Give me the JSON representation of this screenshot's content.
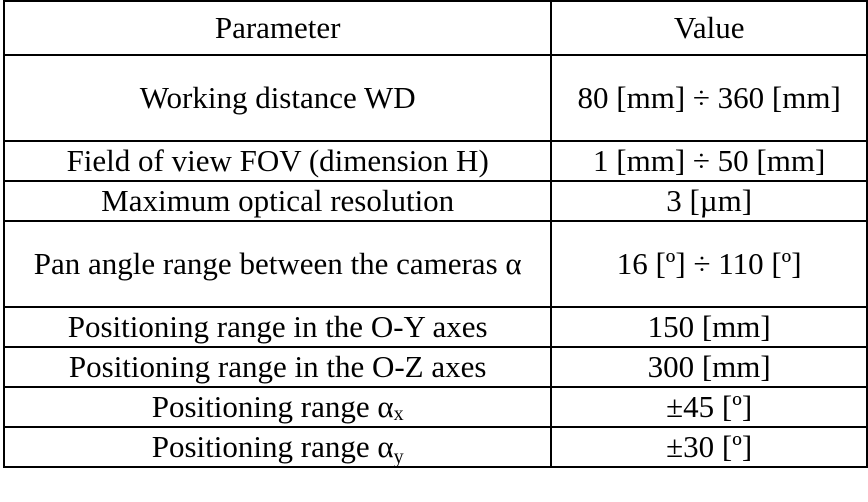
{
  "table": {
    "headers": [
      "Parameter",
      "Value"
    ],
    "rows": [
      {
        "parameter": "Working distance WD",
        "value": "80 [mm] ÷ 360 [mm]"
      },
      {
        "parameter": "Field of view FOV (dimension H)",
        "value": "1 [mm] ÷ 50 [mm]"
      },
      {
        "parameter": "Maximum optical resolution",
        "value": "3 [µm]"
      },
      {
        "parameter": "Pan angle range between the cameras α",
        "value": "16 [º] ÷ 110 [º]"
      },
      {
        "parameter": "Positioning range in the O-Y axes",
        "value": "150 [mm]"
      },
      {
        "parameter": "Positioning range in the O-Z axes",
        "value": "300 [mm]"
      },
      {
        "parameter_main": "Positioning range α",
        "parameter_sub": "x",
        "value": "±45 [º]"
      },
      {
        "parameter_main": "Positioning range α",
        "parameter_sub": "y",
        "value": "±30 [º]"
      }
    ]
  }
}
